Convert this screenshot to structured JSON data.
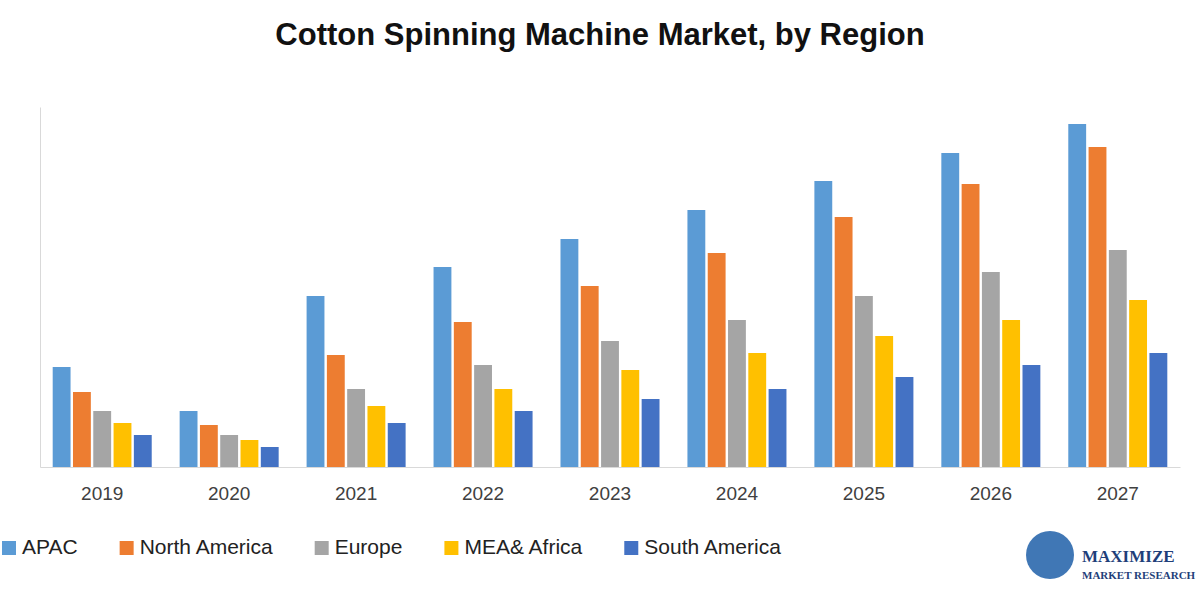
{
  "chart_data": {
    "type": "bar",
    "title": "Cotton Spinning Machine Market, by Region",
    "categories": [
      "2019",
      "2020",
      "2021",
      "2022",
      "2023",
      "2024",
      "2025",
      "2026",
      "2027"
    ],
    "series": [
      {
        "name": "APAC",
        "color": "#5b9bd5",
        "values": [
          100,
          56,
          171,
          200,
          228,
          257,
          286,
          314,
          343
        ]
      },
      {
        "name": "North America",
        "color": "#ed7d31",
        "values": [
          75,
          42,
          112,
          145,
          181,
          214,
          250,
          283,
          320
        ]
      },
      {
        "name": "Europe",
        "color": "#a5a5a5",
        "values": [
          56,
          32,
          78,
          102,
          126,
          147,
          171,
          195,
          217
        ]
      },
      {
        "name": "MEA& Africa",
        "color": "#ffc000",
        "values": [
          44,
          27,
          61,
          78,
          97,
          114,
          131,
          147,
          167
        ]
      },
      {
        "name": "South America",
        "color": "#4472c4",
        "values": [
          32,
          20,
          44,
          56,
          68,
          78,
          90,
          102,
          114
        ]
      }
    ],
    "ylim": [
      0,
      360
    ],
    "yticks": [],
    "grid": false,
    "legend": "bottom",
    "tick_labels": "x",
    "annotations": [
      "MAXIMIZE",
      "MARKET RESEARCH"
    ]
  }
}
